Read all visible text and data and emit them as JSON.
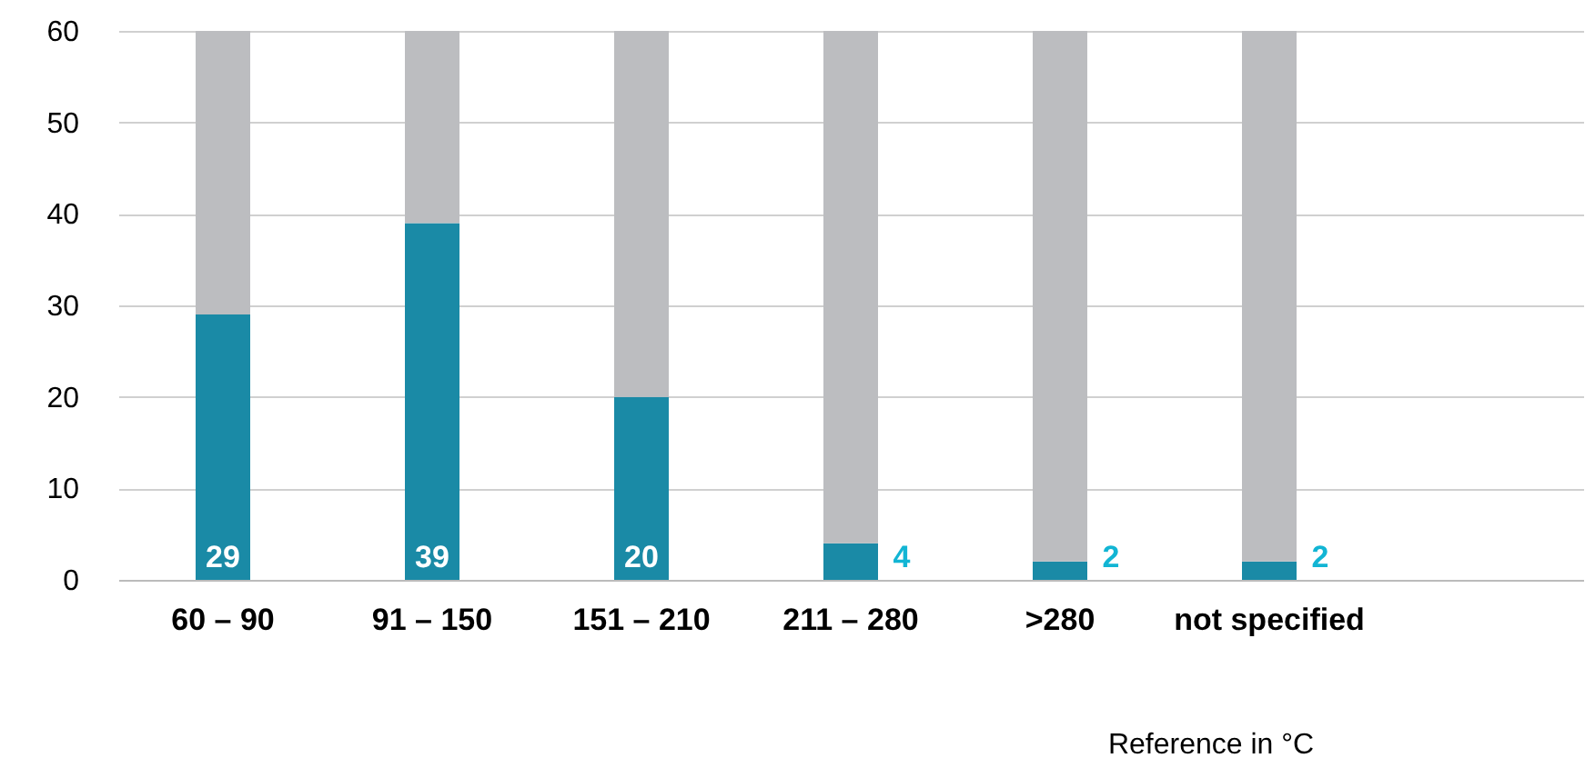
{
  "chart_data": {
    "type": "bar",
    "stacked": true,
    "xlabel": "Reference in °C",
    "categories": [
      "60 – 90",
      "91 – 150",
      "151 – 210",
      "211 – 280",
      ">280",
      "not specified"
    ],
    "series": [
      {
        "color": "#1a8aa6",
        "values": [
          29,
          39,
          20,
          4,
          2,
          2
        ],
        "value_labels": [
          "29",
          "39",
          "20",
          "4",
          "2",
          "2"
        ]
      },
      {
        "color": "#bcbdc0",
        "values": [
          31,
          21,
          40,
          56,
          58,
          58
        ]
      }
    ],
    "ylim": [
      0,
      60
    ],
    "yticks": [
      0,
      10,
      20,
      30,
      40,
      50,
      60
    ],
    "grid": "y"
  }
}
